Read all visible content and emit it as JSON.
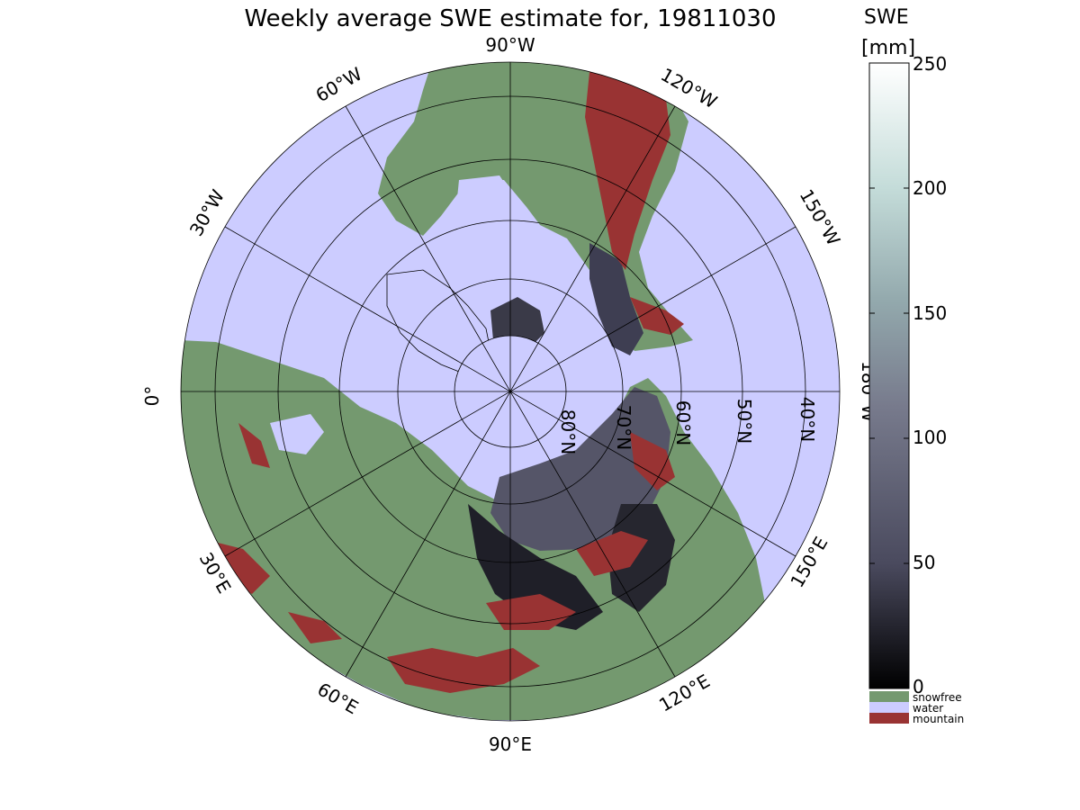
{
  "title": "Weekly average SWE estimate for, 19811030",
  "colorbar": {
    "title_line1": "SWE",
    "title_line2": "[mm]",
    "ticks": [
      "0",
      "50",
      "100",
      "150",
      "200",
      "250"
    ],
    "min": 0,
    "max": 250,
    "colors_low_to_high": [
      "#000000",
      "#4a4a5e",
      "#777a8c",
      "#93a9ad",
      "#c4dcd9",
      "#ffffff"
    ],
    "categories": [
      {
        "label": "snowfree",
        "color": "#74996f"
      },
      {
        "label": "water",
        "color": "#ccccff"
      },
      {
        "label": "mountain",
        "color": "#993333"
      }
    ]
  },
  "map": {
    "projection": "north-polar-stereographic",
    "ocean_color": "#ccccff",
    "land_color": "#74996f",
    "mountain_color": "#993333",
    "snow_color": "#3a3a48",
    "longitude_labels": [
      {
        "text": "90°W",
        "lon": -90
      },
      {
        "text": "120°W",
        "lon": -120
      },
      {
        "text": "150°W",
        "lon": -150
      },
      {
        "text": "180°W",
        "lon": 180
      },
      {
        "text": "150°E",
        "lon": 150
      },
      {
        "text": "120°E",
        "lon": 120
      },
      {
        "text": "90°E",
        "lon": 90
      },
      {
        "text": "60°E",
        "lon": 60
      },
      {
        "text": "30°E",
        "lon": 30
      },
      {
        "text": "0°",
        "lon": 0
      },
      {
        "text": "30°W",
        "lon": -30
      },
      {
        "text": "60°W",
        "lon": -60
      }
    ],
    "latitude_labels": [
      "80°N",
      "70°N",
      "60°N",
      "50°N",
      "40°N"
    ],
    "latitude_circles": [
      80,
      70,
      60,
      50,
      40
    ]
  }
}
